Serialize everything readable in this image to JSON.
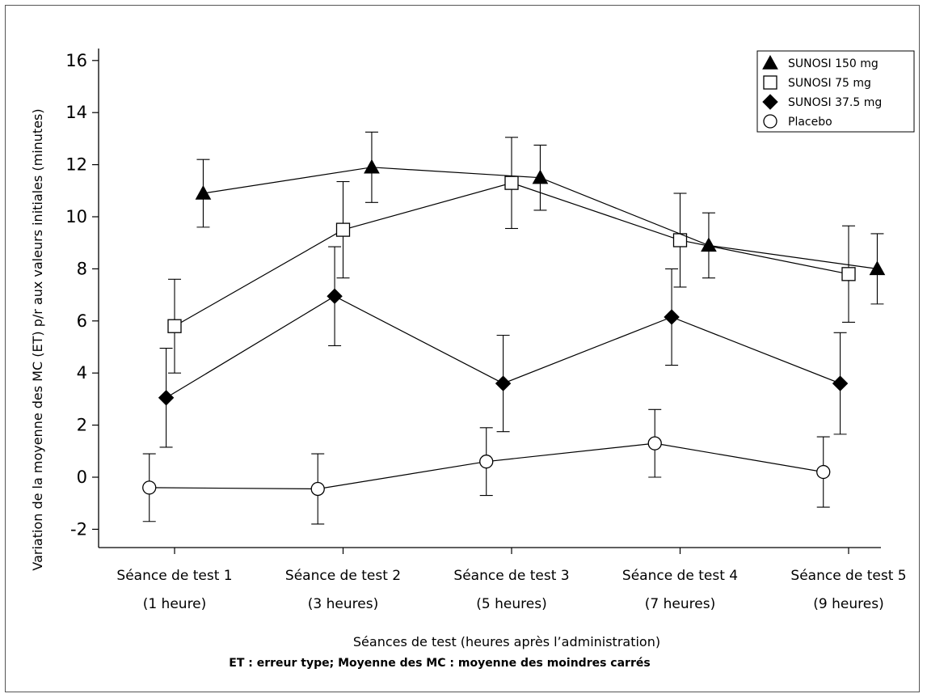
{
  "chart_data": {
    "type": "line",
    "xlabel": "Séances de test (heures après l’administration)",
    "ylabel": "Variation de la moyenne des MC (ET) p/r aux valeurs initiales (minutes)",
    "footnote": "ET : erreur type; Moyenne des MC : moyenne des moindres carrés",
    "ylim": [
      -2.6,
      16.8
    ],
    "yticks": [
      16,
      14,
      12,
      10,
      8,
      6,
      4,
      2,
      0,
      -2
    ],
    "ytick_labels": [
      "16",
      "14",
      "12",
      "10",
      "8",
      "6",
      "4",
      "2",
      "0",
      "-2"
    ],
    "categories": [
      {
        "line1": "Séance de test 1",
        "line2": "(1  heure)"
      },
      {
        "line1": "Séance de test 2",
        "line2": "(3 heures)"
      },
      {
        "line1": "Séance de test 3",
        "line2": "(5 heures)"
      },
      {
        "line1": "Séance de test 4",
        "line2": "(7 heures)"
      },
      {
        "line1": "Séance de test 5",
        "line2": "(9 heures)"
      }
    ],
    "legend_position": "top-right",
    "grid": false,
    "series": [
      {
        "name": "SUNOSI 150 mg",
        "marker": "triangle-filled",
        "offset": 0.17,
        "values": [
          10.9,
          11.9,
          11.5,
          8.9,
          8.0
        ],
        "errors": [
          1.3,
          1.35,
          1.25,
          1.25,
          1.35
        ]
      },
      {
        "name": "SUNOSI 75 mg",
        "marker": "square-open",
        "offset": 0.0,
        "values": [
          5.8,
          9.5,
          11.3,
          9.1,
          7.8
        ],
        "errors": [
          1.8,
          1.85,
          1.75,
          1.8,
          1.85
        ]
      },
      {
        "name": "SUNOSI 37.5 mg",
        "marker": "diamond-filled",
        "offset": -0.05,
        "values": [
          3.05,
          6.95,
          3.6,
          6.15,
          3.6
        ],
        "errors": [
          1.9,
          1.9,
          1.85,
          1.85,
          1.95
        ]
      },
      {
        "name": "Placebo",
        "marker": "circle-open",
        "offset": -0.15,
        "values": [
          -0.4,
          -0.45,
          0.6,
          1.3,
          0.2
        ],
        "errors": [
          1.3,
          1.35,
          1.3,
          1.3,
          1.35
        ]
      }
    ]
  }
}
